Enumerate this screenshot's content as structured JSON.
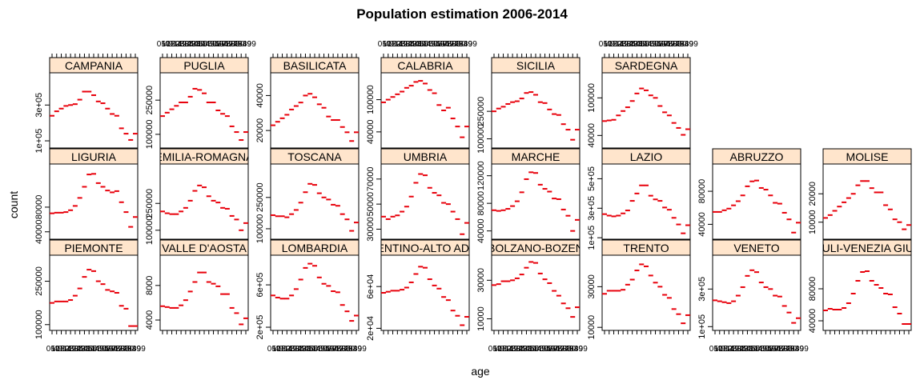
{
  "chart_data": {
    "type": "scatter",
    "title": "Population estimation 2006-2014",
    "xlabel": "age",
    "ylabel": "count",
    "x_tick_label_strings": [
      "0-4",
      "5-9",
      "10-14",
      "15-19",
      "20-24",
      "25-29",
      "30-34",
      "35-39",
      "40-44",
      "45-49",
      "50-54",
      "55-59",
      "60-64",
      "65-69",
      "70-74",
      "75-79",
      "80-84",
      "85-89",
      "90-99"
    ],
    "mark_color": "#e8000b",
    "strip_color": "#ffe5cc",
    "layout": {
      "columns": 8,
      "rows": 3
    },
    "panels": [
      {
        "name": "CAMPANIA",
        "ylim": [
          60000,
          480000
        ],
        "yticks": [
          100000,
          300000
        ],
        "ytick_labels": [
          "1e+05",
          "3e+05"
        ],
        "values": [
          240000,
          265000,
          280000,
          295000,
          300000,
          305000,
          330000,
          375000,
          375000,
          355000,
          320000,
          310000,
          280000,
          250000,
          240000,
          170000,
          140000,
          105000,
          140000
        ]
      },
      {
        "name": "PUGLIA",
        "ylim": [
          40000,
          370000
        ],
        "yticks": [
          100000,
          250000
        ],
        "ytick_labels": [
          "100000",
          "250000"
        ],
        "values": [
          180000,
          195000,
          210000,
          225000,
          240000,
          240000,
          265000,
          300000,
          295000,
          280000,
          240000,
          240000,
          205000,
          190000,
          180000,
          135000,
          110000,
          75000,
          110000
        ]
      },
      {
        "name": "BASILICATA",
        "ylim": [
          10000,
          53000
        ],
        "yticks": [
          20000,
          40000
        ],
        "ytick_labels": [
          "20000",
          "40000"
        ],
        "values": [
          23000,
          25000,
          27000,
          29000,
          32000,
          34000,
          36000,
          40000,
          41000,
          39000,
          35000,
          33000,
          28000,
          26000,
          26000,
          22000,
          19000,
          14000,
          19000
        ]
      },
      {
        "name": "CALABRIA",
        "ylim": [
          10000,
          150000
        ],
        "yticks": [
          40000,
          100000
        ],
        "ytick_labels": [
          "40000",
          "100000"
        ],
        "values": [
          95000,
          100000,
          105000,
          110000,
          115000,
          122000,
          126000,
          133000,
          135000,
          130000,
          118000,
          112000,
          90000,
          80000,
          85000,
          65000,
          50000,
          30000,
          50000
        ]
      },
      {
        "name": "SICILIA",
        "ylim": [
          50000,
          460000
        ],
        "yticks": [
          100000,
          250000
        ],
        "ytick_labels": [
          "100000",
          "250000"
        ],
        "values": [
          250000,
          265000,
          275000,
          290000,
          300000,
          305000,
          320000,
          350000,
          355000,
          340000,
          300000,
          295000,
          260000,
          235000,
          230000,
          180000,
          150000,
          95000,
          150000
        ]
      },
      {
        "name": "SARDEGNA",
        "ylim": [
          20000,
          140000
        ],
        "yticks": [
          40000,
          100000
        ],
        "ytick_labels": [
          "40000",
          "100000"
        ],
        "values": [
          63000,
          64000,
          65000,
          72000,
          79000,
          85000,
          95000,
          107000,
          115000,
          112000,
          104000,
          100000,
          87000,
          77000,
          72000,
          60000,
          52000,
          41000,
          50000
        ]
      },
      {
        "name": "LIGURIA",
        "ylim": [
          28000,
          150000
        ],
        "yticks": [
          40000,
          80000
        ],
        "ytick_labels": [
          "40000",
          "80000"
        ],
        "values": [
          70000,
          71000,
          71000,
          72000,
          75000,
          82000,
          95000,
          113000,
          133000,
          134000,
          119000,
          113000,
          107000,
          104000,
          106000,
          88000,
          72000,
          48000,
          64000
        ]
      },
      {
        "name": "EMILIA-ROMAGNA",
        "ylim": [
          50000,
          470000
        ],
        "yticks": [
          100000,
          250000
        ],
        "ytick_labels": [
          "100000",
          "250000"
        ],
        "values": [
          205000,
          195000,
          190000,
          190000,
          205000,
          225000,
          265000,
          320000,
          350000,
          340000,
          290000,
          265000,
          255000,
          225000,
          220000,
          180000,
          160000,
          100000,
          140000
        ]
      },
      {
        "name": "TOSCANA",
        "ylim": [
          50000,
          410000
        ],
        "yticks": [
          100000,
          250000
        ],
        "ytick_labels": [
          "100000",
          "250000"
        ],
        "values": [
          165000,
          160000,
          160000,
          155000,
          170000,
          190000,
          225000,
          275000,
          315000,
          310000,
          270000,
          250000,
          240000,
          215000,
          210000,
          170000,
          145000,
          90000,
          130000
        ]
      },
      {
        "name": "UMBRIA",
        "ylim": [
          22000,
          82000
        ],
        "yticks": [
          30000,
          50000,
          70000
        ],
        "ytick_labels": [
          "30000",
          "50000",
          "70000"
        ],
        "values": [
          40000,
          38000,
          40000,
          41000,
          44000,
          48000,
          56000,
          67000,
          74000,
          73000,
          63000,
          59000,
          57000,
          51000,
          50000,
          44000,
          38000,
          26000,
          35000
        ]
      },
      {
        "name": "MARCHE",
        "ylim": [
          28000,
          137000
        ],
        "yticks": [
          40000,
          80000,
          120000
        ],
        "ytick_labels": [
          "40000",
          "80000",
          "120000"
        ],
        "values": [
          70000,
          69000,
          70000,
          72000,
          76000,
          83000,
          96000,
          115000,
          125000,
          124000,
          107000,
          101000,
          97000,
          87000,
          86000,
          71000,
          62000,
          40000,
          56000
        ]
      },
      {
        "name": "LAZIO",
        "ylim": [
          90000,
          600000
        ],
        "yticks": [
          100000,
          300000,
          500000
        ],
        "ytick_labels": [
          "1e+05",
          "3e+05",
          "5e+05"
        ],
        "values": [
          260000,
          250000,
          245000,
          250000,
          265000,
          285000,
          350000,
          400000,
          455000,
          455000,
          385000,
          360000,
          350000,
          305000,
          290000,
          235000,
          190000,
          130000,
          185000
        ]
      },
      {
        "name": "ABRUZZO",
        "ylim": [
          22000,
          113000
        ],
        "yticks": [
          40000,
          80000
        ],
        "ytick_labels": [
          "40000",
          "80000"
        ],
        "values": [
          55000,
          55000,
          57000,
          59000,
          63000,
          68000,
          75000,
          86000,
          92000,
          93000,
          84000,
          82000,
          75000,
          66000,
          65000,
          54000,
          46000,
          30000,
          42000
        ]
      },
      {
        "name": "MOLISE",
        "ylim": [
          4000,
          30500
        ],
        "yticks": [
          10000,
          20000
        ],
        "ytick_labels": [
          "10000",
          "20000"
        ],
        "values": [
          11500,
          12500,
          14000,
          15500,
          17000,
          18500,
          20000,
          23000,
          24500,
          24500,
          22000,
          20500,
          20500,
          16000,
          14500,
          11000,
          10000,
          7500,
          9000
        ]
      },
      {
        "name": "PIEMONTE",
        "ylim": [
          80000,
          340000
        ],
        "yticks": [
          100000,
          250000
        ],
        "ytick_labels": [
          "100000",
          "250000"
        ],
        "values": [
          175000,
          180000,
          180000,
          180000,
          185000,
          200000,
          225000,
          265000,
          290000,
          285000,
          250000,
          240000,
          220000,
          215000,
          210000,
          165000,
          155000,
          95000,
          95000
        ]
      },
      {
        "name": "VALLE D'AOSTA",
        "ylim": [
          2800,
          11500
        ],
        "yticks": [
          4000,
          8000
        ],
        "ytick_labels": [
          "4000",
          "8000"
        ],
        "values": [
          5600,
          5500,
          5400,
          5400,
          5700,
          6300,
          7300,
          8400,
          9500,
          9500,
          8400,
          8200,
          7900,
          7000,
          7000,
          5400,
          4800,
          3500,
          4200
        ]
      },
      {
        "name": "LOMBARDIA",
        "ylim": [
          170000,
          880000
        ],
        "yticks": [
          200000,
          600000
        ],
        "ytick_labels": [
          "2e+05",
          "6e+05"
        ],
        "values": [
          500000,
          480000,
          470000,
          470000,
          500000,
          560000,
          650000,
          760000,
          800000,
          780000,
          670000,
          610000,
          590000,
          540000,
          530000,
          410000,
          350000,
          260000,
          310000
        ]
      },
      {
        "name": "TRENTINO-ALTO ADIGE",
        "ylim": [
          18000,
          90000
        ],
        "yticks": [
          20000,
          60000
        ],
        "ytick_labels": [
          "2e+04",
          "6e+04"
        ],
        "values": [
          54000,
          55000,
          56000,
          56000,
          57000,
          59000,
          64000,
          72000,
          79000,
          78000,
          67000,
          61000,
          58000,
          50000,
          47000,
          37000,
          32000,
          23000,
          31000
        ]
      },
      {
        "name": "BOLZANO-BOZEN",
        "ylim": [
          4000,
          43000
        ],
        "yticks": [
          10000,
          30000
        ],
        "ytick_labels": [
          "10000",
          "30000"
        ],
        "values": [
          27500,
          28000,
          29500,
          29500,
          30000,
          31000,
          33000,
          36500,
          39500,
          39000,
          33500,
          30500,
          28500,
          24500,
          22000,
          18000,
          15500,
          11000,
          16000
        ]
      },
      {
        "name": "TRENTO",
        "ylim": [
          8500,
          45500
        ],
        "yticks": [
          10000,
          30000
        ],
        "ytick_labels": [
          "10000",
          "30000"
        ],
        "values": [
          26500,
          28000,
          28000,
          28000,
          28500,
          31000,
          33500,
          38000,
          41000,
          40000,
          35500,
          32000,
          30000,
          26000,
          24500,
          19000,
          16500,
          12000,
          16000
        ]
      },
      {
        "name": "VENETO",
        "ylim": [
          80000,
          480000
        ],
        "yticks": [
          100000,
          300000
        ],
        "ytick_labels": [
          "1e+05",
          "3e+05"
        ],
        "values": [
          240000,
          235000,
          230000,
          225000,
          235000,
          265000,
          310000,
          370000,
          400000,
          390000,
          335000,
          310000,
          300000,
          265000,
          260000,
          210000,
          175000,
          120000,
          145000
        ]
      },
      {
        "name": "FRIULI-VENEZIA GIULIA",
        "ylim": [
          28000,
          122000
        ],
        "yticks": [
          40000,
          80000
        ],
        "ytick_labels": [
          "40000",
          "80000"
        ],
        "values": [
          53000,
          55000,
          54000,
          54000,
          56000,
          62000,
          74000,
          90000,
          101000,
          102000,
          90000,
          85000,
          81000,
          74000,
          73000,
          57000,
          49000,
          36000,
          36000
        ]
      }
    ]
  }
}
